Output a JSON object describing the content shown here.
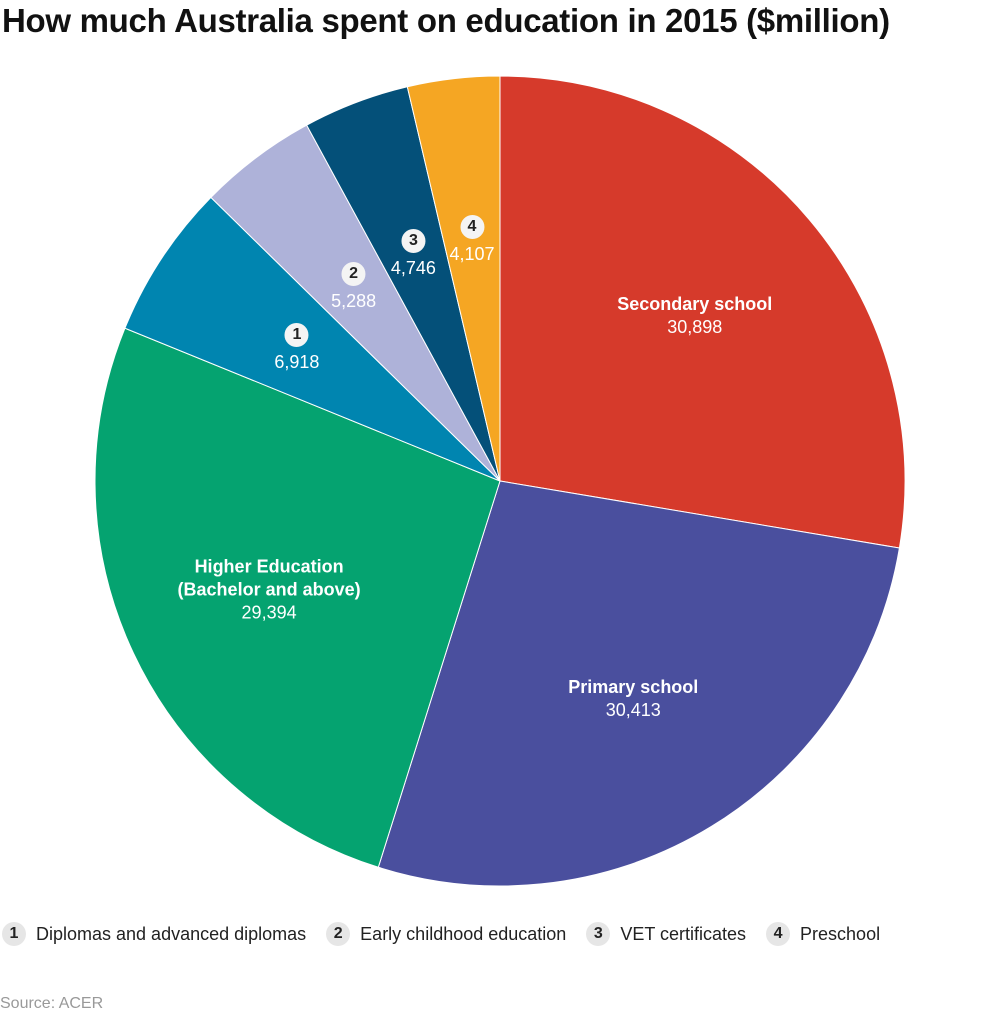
{
  "chart_data": {
    "type": "pie",
    "title": "How much Australia spent on education in 2015 ($million)",
    "categories": [
      "Secondary school",
      "Primary school",
      "Higher Education (Bachelor and above)",
      "Diplomas and advanced diplomas",
      "Early childhood education",
      "VET certificates",
      "Preschool"
    ],
    "values": [
      30898,
      30413,
      29394,
      6918,
      5288,
      4746,
      4107
    ],
    "value_labels": [
      "30,898",
      "30,413",
      "29,394",
      "6,918",
      "5,288",
      "4,746",
      "4,107"
    ],
    "markers": [
      null,
      null,
      null,
      "1",
      "2",
      "3",
      "4"
    ],
    "colors": [
      "#d63a2b",
      "#4a4f9e",
      "#05a370",
      "#0085b0",
      "#aeb2d9",
      "#045079",
      "#f5a623"
    ],
    "source": "Source: ACER"
  }
}
